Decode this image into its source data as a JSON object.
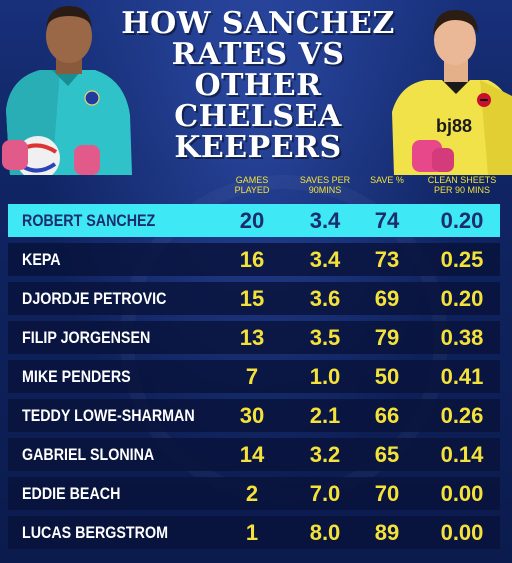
{
  "title": "HOW SANCHEZ RATES VS OTHER CHELSEA KEEPERS",
  "colors": {
    "background": "#0d1f54",
    "highlight_row": "#3ee8f5",
    "value_text": "#f4e23a",
    "row_background": "#08123a"
  },
  "chart_data": {
    "type": "table",
    "title": "HOW SANCHEZ RATES VS OTHER CHELSEA KEEPERS",
    "columns": [
      "GAMES PLAYED",
      "SAVES PER 90MINS",
      "SAVE %",
      "CLEAN SHEETS PER 90 MINS"
    ],
    "highlighted_row": "ROBERT SANCHEZ",
    "rows": [
      {
        "name": "ROBERT SANCHEZ",
        "games": "20",
        "saves": "3.4",
        "pct": "74",
        "cs": "0.20"
      },
      {
        "name": "KEPA",
        "games": "16",
        "saves": "3.4",
        "pct": "73",
        "cs": "0.25"
      },
      {
        "name": "DJORDJE PETROVIC",
        "games": "15",
        "saves": "3.6",
        "pct": "69",
        "cs": "0.20"
      },
      {
        "name": "FILIP JORGENSEN",
        "games": "13",
        "saves": "3.5",
        "pct": "79",
        "cs": "0.38"
      },
      {
        "name": "MIKE PENDERS",
        "games": "7",
        "saves": "1.0",
        "pct": "50",
        "cs": "0.41"
      },
      {
        "name": "TEDDY LOWE-SHARMAN",
        "games": "30",
        "saves": "2.1",
        "pct": "66",
        "cs": "0.26"
      },
      {
        "name": "GABRIEL SLONINA",
        "games": "14",
        "saves": "3.2",
        "pct": "65",
        "cs": "0.14"
      },
      {
        "name": "EDDIE BEACH",
        "games": "2",
        "saves": "7.0",
        "pct": "70",
        "cs": "0.00"
      },
      {
        "name": "LUCAS BERGSTROM",
        "games": "1",
        "saves": "8.0",
        "pct": "89",
        "cs": "0.00"
      }
    ]
  },
  "players": {
    "left_shirt_color": "#2fc3c9",
    "right_shirt_color": "#f2e24a",
    "right_sponsor": "bj88",
    "icons": [
      "chelsea-crest-icon",
      "bournemouth-crest-icon",
      "football-icon"
    ]
  }
}
